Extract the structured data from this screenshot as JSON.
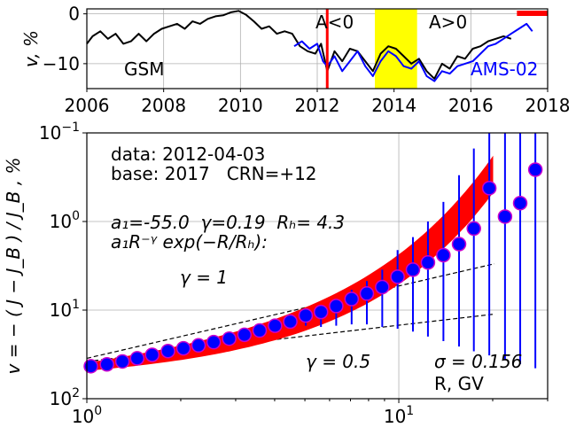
{
  "chart_data": [
    {
      "type": "line",
      "ylabel": "v, %",
      "xlim": [
        2006,
        2018
      ],
      "ylim": [
        -15,
        1
      ],
      "xticks": [
        "2006",
        "2008",
        "2010",
        "2012",
        "2014",
        "2016",
        "2018"
      ],
      "xtick_values": [
        2006,
        2008,
        2010,
        2012,
        2014,
        2016,
        2018
      ],
      "yticks": [
        "0",
        "−10"
      ],
      "ytick_values": [
        0,
        -10
      ],
      "grid": true,
      "annotations": {
        "a_neg": "A<0",
        "a_pos": "A>0"
      },
      "marker_date": 2012.26,
      "marker_color": "#ff0000",
      "highlight_band": [
        2013.5,
        2014.6
      ],
      "highlight_color": "#ffff00",
      "top_bar": [
        2017.2,
        2018
      ],
      "series": [
        {
          "name": "GSM",
          "color": "#000000",
          "x": [
            2006.0,
            2006.15,
            2006.35,
            2006.55,
            2006.75,
            2006.95,
            2007.15,
            2007.35,
            2007.55,
            2007.75,
            2007.95,
            2008.15,
            2008.35,
            2008.55,
            2008.75,
            2008.95,
            2009.15,
            2009.35,
            2009.55,
            2009.75,
            2009.95,
            2010.15,
            2010.35,
            2010.55,
            2010.75,
            2010.95,
            2011.15,
            2011.35,
            2011.55,
            2011.75,
            2011.95,
            2012.1,
            2012.26,
            2012.45,
            2012.65,
            2012.85,
            2013.05,
            2013.25,
            2013.45,
            2013.65,
            2013.85,
            2014.05,
            2014.25,
            2014.45,
            2014.65,
            2014.85,
            2015.05,
            2015.25,
            2015.45,
            2015.65,
            2015.85,
            2016.05,
            2016.25,
            2016.45,
            2016.65,
            2016.85,
            2017.05
          ],
          "y": [
            -6.0,
            -4.5,
            -3.5,
            -5.0,
            -4.0,
            -6.0,
            -5.5,
            -4.0,
            -5.5,
            -4.0,
            -3.0,
            -2.5,
            -2.0,
            -3.0,
            -1.5,
            -2.0,
            -1.0,
            -0.5,
            -0.3,
            0.3,
            0.6,
            -0.2,
            -1.5,
            -3.0,
            -2.5,
            -4.0,
            -3.5,
            -4.0,
            -6.5,
            -7.5,
            -8.0,
            -6.0,
            -11.5,
            -7.5,
            -9.5,
            -7.0,
            -7.5,
            -9.5,
            -11.5,
            -8.0,
            -6.5,
            -7.0,
            -8.5,
            -10.0,
            -9.0,
            -11.5,
            -13.0,
            -10.0,
            -11.0,
            -8.5,
            -9.0,
            -7.0,
            -6.5,
            -5.5,
            -5.0,
            -4.5,
            -5.0
          ]
        },
        {
          "name": "AMS-02",
          "color": "#0000ff",
          "x": [
            2011.4,
            2011.6,
            2011.8,
            2012.0,
            2012.15,
            2012.26,
            2012.45,
            2012.65,
            2012.85,
            2013.05,
            2013.25,
            2013.45,
            2013.65,
            2013.85,
            2014.05,
            2014.25,
            2014.45,
            2014.65,
            2014.85,
            2015.05,
            2015.25,
            2015.45,
            2015.65,
            2015.85,
            2016.05,
            2016.25,
            2016.45,
            2016.65,
            2016.85,
            2017.05,
            2017.25,
            2017.45,
            2017.6
          ],
          "y": [
            -6.5,
            -5.5,
            -7.0,
            -6.0,
            -9.5,
            -10.5,
            -8.5,
            -11.5,
            -9.5,
            -7.5,
            -10.5,
            -12.5,
            -9.5,
            -7.5,
            -8.5,
            -10.5,
            -11.0,
            -9.5,
            -12.5,
            -13.5,
            -11.5,
            -12.0,
            -10.5,
            -10.0,
            -9.5,
            -8.0,
            -6.5,
            -6.0,
            -5.0,
            -4.0,
            -3.0,
            -2.0,
            -3.5
          ]
        }
      ]
    },
    {
      "type": "scatter",
      "xlabel": "R, GV",
      "ylabel": "v = − ( J − J_B ) / J_B , %",
      "xscale": "log",
      "yscale": "log",
      "yaxis_inverted": true,
      "xlim": [
        1,
        30
      ],
      "ylim": [
        0.1,
        100
      ],
      "xticks": [
        {
          "base": "10",
          "exp": "0",
          "value": 1
        },
        {
          "base": "10",
          "exp": "1",
          "value": 10
        }
      ],
      "yticks": [
        {
          "base": "10",
          "exp": "−1",
          "value": 0.1
        },
        {
          "base": "10",
          "exp": "0",
          "value": 1
        },
        {
          "base": "10",
          "exp": "1",
          "value": 10
        },
        {
          "base": "10",
          "exp": "2",
          "value": 100
        }
      ],
      "grid": true,
      "text": {
        "data_line": "data: 2012-04-03",
        "base_line": "base: 2017   CRN=+12",
        "params_line": "a₁=-55.0  γ=0.19  Rₕ= 4.3",
        "formula_line": "a₁R⁻ᵞ exp(−R/Rₕ):",
        "gamma1": "γ = 1",
        "gamma05": "γ = 0.5",
        "sigma": "σ = 0.156"
      },
      "fit": {
        "a1": -55.0,
        "gamma": 0.19,
        "RH": 4.3
      },
      "fit_color": "#ff0000",
      "point_color": "#0000ff",
      "point_edge": "#cc00cc",
      "errorbar_color": "#0000ff",
      "points": {
        "x": [
          1.03,
          1.16,
          1.3,
          1.45,
          1.62,
          1.82,
          2.04,
          2.28,
          2.55,
          2.86,
          3.2,
          3.58,
          4.01,
          4.49,
          5.03,
          5.63,
          6.3,
          7.06,
          7.9,
          8.85,
          9.91,
          11.1,
          12.4,
          13.9,
          15.6,
          17.4,
          19.5,
          21.9,
          24.5,
          27.4
        ],
        "y": [
          43.0,
          41.0,
          38.0,
          35.0,
          32.0,
          29.0,
          27.0,
          25.0,
          23.0,
          21.0,
          19.0,
          17.0,
          15.0,
          13.5,
          11.5,
          10.5,
          9.0,
          7.5,
          6.5,
          5.5,
          4.2,
          3.5,
          2.9,
          2.4,
          1.8,
          1.2,
          0.42,
          0.88,
          0.62,
          0.26
        ],
        "err_lo": [
          0,
          0,
          0,
          0,
          0,
          0,
          0,
          0,
          0,
          0,
          0,
          0,
          0,
          0,
          0.8,
          1.2,
          1.3,
          1.6,
          1.8,
          2.0,
          2.1,
          2.0,
          1.9,
          1.8,
          1.5,
          1.05,
          0.32,
          0.8,
          0.57,
          0.25
        ],
        "err_hi": [
          0,
          0,
          0,
          0,
          0,
          0,
          0,
          0,
          0,
          0,
          0,
          0,
          0,
          0,
          3.5,
          5.0,
          6.0,
          7.0,
          8.0,
          10.0,
          12.0,
          14.0,
          17.0,
          20.0,
          24.0,
          28.0,
          32.0,
          36.0,
          40.0,
          45.0
        ]
      },
      "ref_lines": [
        {
          "label": "gamma1",
          "x": [
            1.0,
            30.0
          ],
          "y": [
            35.0,
            2.2
          ]
        },
        {
          "label": "gamma05",
          "x": [
            1.0,
            30.0
          ],
          "y": [
            38.0,
            9.5
          ]
        }
      ]
    }
  ]
}
